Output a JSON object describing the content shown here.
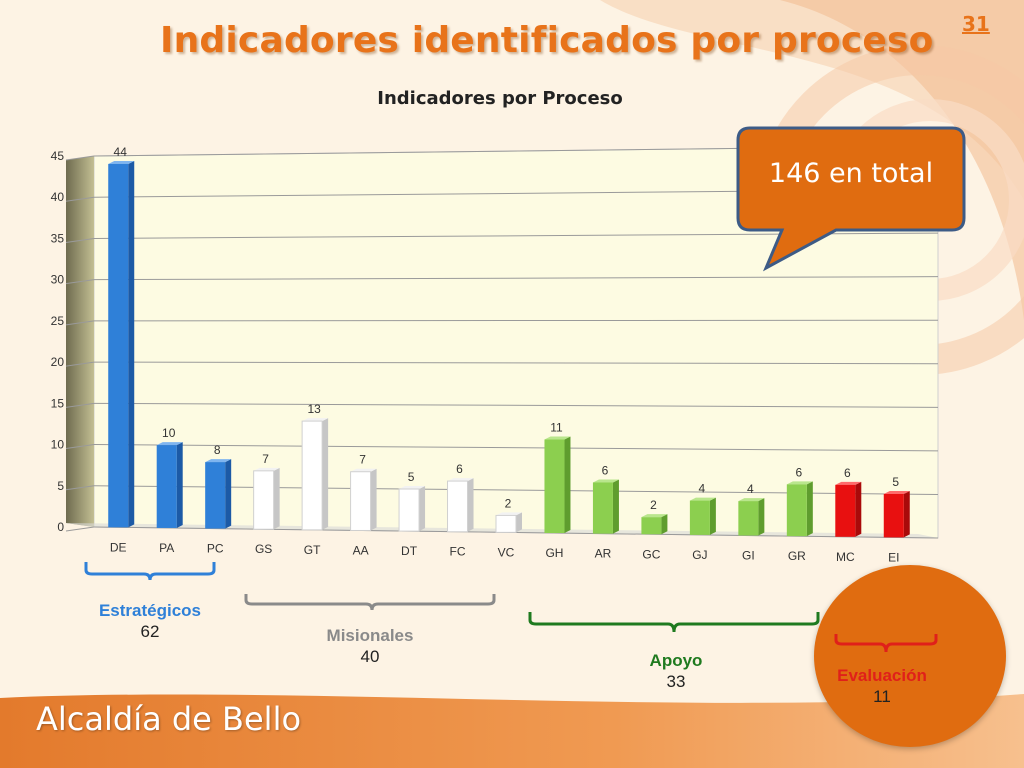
{
  "slide": {
    "title": "Indicadores identificados por proceso",
    "number": "31",
    "footer": "Alcaldía de Bello"
  },
  "callout": {
    "text": "146 en total"
  },
  "groups": [
    {
      "name": "Estratégicos",
      "count": "62",
      "color": "#2f80d8"
    },
    {
      "name": "Misionales",
      "count": "40",
      "color": "#8a8a8a"
    },
    {
      "name": "Apoyo",
      "count": "33",
      "color": "#1f7a1f"
    },
    {
      "name": "Evaluación",
      "count": "11",
      "color": "#e0201a"
    }
  ],
  "colors": {
    "accent": "#e8731a",
    "blue_bars": "#2f80d8",
    "white_bars": "#ffffff",
    "green_bars": "#8ccf4f",
    "red_bars": "#e81010",
    "plot_back": "#fdfbe2"
  },
  "chart_data": {
    "type": "bar",
    "title": "Indicadores por Proceso",
    "xlabel": "",
    "ylabel": "",
    "ylim": [
      0,
      45
    ],
    "yticks": [
      0,
      5,
      10,
      15,
      20,
      25,
      30,
      35,
      40,
      45
    ],
    "grid": true,
    "categories": [
      "DE",
      "PA",
      "PC",
      "GS",
      "GT",
      "AA",
      "DT",
      "FC",
      "VC",
      "GH",
      "AR",
      "GC",
      "GJ",
      "GI",
      "GR",
      "MC",
      "EI"
    ],
    "values": [
      44,
      10,
      8,
      7,
      13,
      7,
      5,
      6,
      2,
      11,
      6,
      2,
      4,
      4,
      6,
      6,
      5
    ],
    "bar_groups": [
      "blue",
      "blue",
      "blue",
      "white",
      "white",
      "white",
      "white",
      "white",
      "white",
      "green",
      "green",
      "green",
      "green",
      "green",
      "green",
      "red",
      "red"
    ]
  }
}
